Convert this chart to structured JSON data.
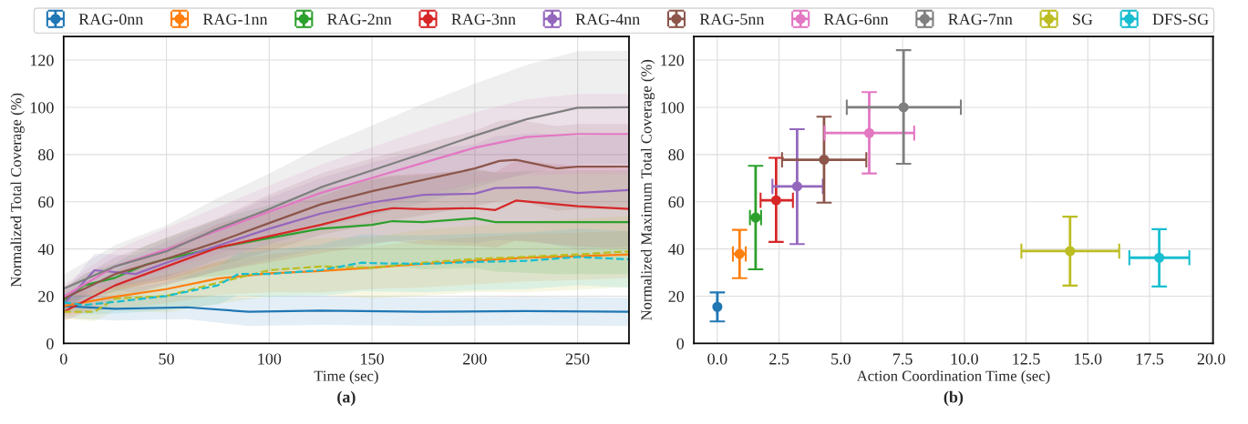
{
  "chart_data": [
    {
      "type": "line",
      "xlabel": "Time (sec)",
      "ylabel": "Normalized Total Coverage (%)",
      "annotations": [
        "(a)"
      ],
      "xlim": [
        0,
        275
      ],
      "ylim": [
        0,
        130
      ],
      "xticks": [
        0,
        50,
        100,
        150,
        200,
        250
      ],
      "yticks": [
        0,
        20,
        40,
        60,
        80,
        100,
        120
      ],
      "grid": true,
      "marker": "none",
      "series": [
        {
          "color": "#1f77b4",
          "line_style": "solid",
          "x": [
            0,
            25,
            60,
            90,
            125,
            175,
            225,
            275
          ],
          "values": [
            15.8,
            14.7,
            15.3,
            13.4,
            13.9,
            13.4,
            13.7,
            13.4
          ],
          "lower": [
            10.8,
            9.7,
            10.3,
            7.4,
            7.9,
            7.4,
            7.7,
            7.4
          ],
          "upper": [
            20.8,
            19.7,
            20.3,
            19.4,
            19.9,
            19.4,
            19.7,
            19.4
          ]
        },
        {
          "color": "#ff7f0e",
          "line_style": "solid",
          "x": [
            0,
            25,
            50,
            75,
            100,
            125,
            150,
            175,
            200,
            225,
            250,
            275
          ],
          "values": [
            15.8,
            19.8,
            23,
            27.5,
            29.7,
            30.7,
            32.1,
            33.7,
            35,
            36.3,
            36.9,
            37.7
          ],
          "lower": [
            11.8,
            14.8,
            17,
            20.5,
            21.7,
            21.7,
            23.1,
            23.7,
            25,
            26.3,
            26.9,
            27.7
          ],
          "upper": [
            19.8,
            24.8,
            29,
            34.5,
            37.7,
            39.7,
            41.1,
            43.7,
            45,
            46.3,
            46.9,
            47.7
          ]
        },
        {
          "color": "#2ca02c",
          "line_style": "solid",
          "x": [
            0,
            10,
            25,
            40,
            50,
            75,
            100,
            125,
            150,
            160,
            175,
            200,
            210,
            240,
            275
          ],
          "values": [
            18.2,
            24.6,
            27.8,
            33.4,
            35.8,
            40.6,
            44.6,
            48.6,
            50.2,
            51.8,
            51.4,
            53,
            51.4,
            51.4,
            51.4
          ],
          "lower": [
            14.2,
            19.6,
            21.8,
            25.4,
            26.8,
            28.6,
            30.6,
            31.6,
            31.2,
            32.8,
            31.4,
            32,
            30.4,
            29.4,
            29.4
          ],
          "upper": [
            22.2,
            29.6,
            33.8,
            41.4,
            44.8,
            52.6,
            58.6,
            65.6,
            69.2,
            70.8,
            71.4,
            74,
            72.4,
            73.4,
            73.4
          ]
        },
        {
          "color": "#d62728",
          "line_style": "solid",
          "x": [
            0,
            25,
            50,
            75,
            100,
            125,
            150,
            160,
            175,
            200,
            210,
            220,
            250,
            275
          ],
          "values": [
            13.4,
            24.6,
            32.6,
            40.6,
            45.4,
            50.2,
            55.8,
            57.3,
            56.9,
            57.3,
            56.5,
            60.5,
            58.1,
            57
          ],
          "lower": [
            9.4,
            18.6,
            24.6,
            30.6,
            34.4,
            38.2,
            41.8,
            43.3,
            41.9,
            41.3,
            40.5,
            43.5,
            41.1,
            40
          ],
          "upper": [
            17.4,
            30.6,
            40.6,
            50.6,
            56.4,
            62.2,
            69.8,
            71.3,
            71.9,
            73.3,
            72.5,
            77.5,
            75.1,
            74
          ]
        },
        {
          "color": "#9467bd",
          "line_style": "solid",
          "x": [
            0,
            15,
            35,
            50,
            75,
            100,
            125,
            150,
            175,
            200,
            210,
            230,
            250,
            275
          ],
          "values": [
            16.6,
            31,
            29.4,
            34.2,
            41.4,
            48.6,
            55,
            59.7,
            62.9,
            63.4,
            65.8,
            66.1,
            63.7,
            65
          ],
          "lower": [
            11.6,
            24,
            21.4,
            25.2,
            30.4,
            35.6,
            40,
            42.7,
            43.9,
            42.4,
            43.8,
            43.1,
            39.7,
            41
          ],
          "upper": [
            21.6,
            38,
            37.4,
            43.2,
            52.4,
            61.6,
            70,
            76.7,
            81.9,
            84.4,
            87.8,
            89.1,
            87.7,
            89
          ]
        },
        {
          "color": "#8c564b",
          "line_style": "solid",
          "x": [
            0,
            25,
            50,
            75,
            100,
            125,
            150,
            175,
            200,
            212,
            220,
            240,
            250,
            275
          ],
          "values": [
            19,
            29.4,
            35.8,
            43,
            51,
            58.9,
            64.5,
            69.3,
            74.1,
            77.3,
            77.8,
            74.1,
            74.9,
            74.9
          ],
          "lower": [
            14,
            22.4,
            26.8,
            33,
            39,
            45.9,
            50.5,
            54.3,
            58.1,
            60.3,
            60.8,
            56.1,
            56.9,
            56.9
          ],
          "upper": [
            24,
            36.4,
            44.8,
            53,
            63,
            71.9,
            78.5,
            84.3,
            90.1,
            94.3,
            94.8,
            92.1,
            92.9,
            92.9
          ]
        },
        {
          "color": "#e377c2",
          "line_style": "solid",
          "x": [
            0,
            25,
            50,
            75,
            100,
            125,
            150,
            175,
            200,
            225,
            250,
            275
          ],
          "values": [
            19.8,
            32.6,
            39.8,
            47.8,
            55.8,
            63.7,
            70.1,
            76.5,
            82.9,
            87.4,
            88.7,
            88.7
          ],
          "lower": [
            14.8,
            25.6,
            30.8,
            37.8,
            44.8,
            51.7,
            57.1,
            62.5,
            67.9,
            71.4,
            71.7,
            71.7
          ],
          "upper": [
            24.8,
            39.6,
            48.8,
            57.8,
            66.8,
            75.7,
            83.1,
            90.5,
            97.9,
            103.4,
            105.7,
            105.7
          ]
        },
        {
          "color": "#7f7f7f",
          "line_style": "solid",
          "x": [
            0,
            25,
            50,
            75,
            100,
            125,
            150,
            175,
            200,
            225,
            250,
            275
          ],
          "values": [
            23.2,
            32.6,
            39,
            48.6,
            56.9,
            66.1,
            73.3,
            80.5,
            88,
            94.9,
            99.8,
            100
          ],
          "lower": [
            17.2,
            23.6,
            28,
            35.6,
            41.9,
            49.1,
            54.3,
            59.5,
            66,
            71.9,
            75.8,
            76
          ],
          "upper": [
            29.2,
            41.6,
            50,
            61.6,
            71.9,
            83.1,
            92.3,
            101.5,
            110,
            117.9,
            123.8,
            124
          ]
        },
        {
          "color": "#bcbd22",
          "line_style": "dashed",
          "x": [
            0,
            15,
            25,
            50,
            75,
            100,
            125,
            150,
            175,
            200,
            225,
            250,
            275
          ],
          "values": [
            13.4,
            13.4,
            19,
            20.1,
            25.7,
            31,
            32.6,
            32.1,
            34.2,
            35.8,
            36.7,
            37.7,
            39
          ],
          "lower": [
            10.4,
            9.4,
            14,
            13.1,
            16.7,
            20,
            20.6,
            19.1,
            20.2,
            21.8,
            21.7,
            22.7,
            24
          ],
          "upper": [
            16.4,
            17.4,
            24,
            27.1,
            34.7,
            42,
            44.6,
            45.1,
            48.2,
            49.8,
            51.7,
            52.7,
            54
          ]
        },
        {
          "color": "#17becf",
          "line_style": "dashed",
          "x": [
            0,
            10,
            25,
            50,
            75,
            85,
            100,
            125,
            145,
            155,
            175,
            200,
            225,
            250,
            275
          ],
          "values": [
            17.4,
            16.3,
            17.6,
            20.1,
            24.6,
            29.4,
            29.4,
            31,
            34.2,
            33.9,
            33.7,
            34.5,
            35,
            36.6,
            35.6
          ],
          "lower": [
            14.4,
            12.3,
            12.6,
            14.1,
            16.6,
            20.4,
            19.4,
            20,
            22.2,
            21.9,
            21.7,
            22.5,
            23,
            24.6,
            23.6
          ],
          "upper": [
            20.4,
            20.3,
            22.6,
            26.1,
            32.6,
            38.4,
            39.4,
            42,
            46.2,
            45.9,
            45.7,
            46.5,
            47,
            48.6,
            47.6
          ]
        }
      ]
    },
    {
      "type": "scatter",
      "xlabel": "Action Coordination Time (sec)",
      "ylabel": "Normalized Maximum Total Coverage (%)",
      "annotations": [
        "(b)"
      ],
      "xlim": [
        -0.95,
        20.07
      ],
      "ylim": [
        0,
        130
      ],
      "xticks": [
        {
          "value": 0,
          "label": "0.0"
        },
        2.5,
        {
          "value": 5,
          "label": "5.0"
        },
        7.5,
        {
          "value": 10,
          "label": "10.0"
        },
        12.5,
        {
          "value": 15,
          "label": "15.0"
        },
        17.5,
        {
          "value": 20,
          "label": "20.0"
        }
      ],
      "yticks": [
        0,
        20,
        40,
        60,
        80,
        100,
        120
      ],
      "grid": true,
      "marker": "circle",
      "legend": "top",
      "series": [
        {
          "name": "RAG-0nn",
          "color": "#1f77b4",
          "x": [
            0
          ],
          "values": [
            15.5
          ],
          "errors": [
            [
              9.3,
              21.6
            ]
          ],
          "xerrors": [
            null
          ]
        },
        {
          "name": "RAG-1nn",
          "color": "#ff7f0e",
          "x": [
            0.9
          ],
          "values": [
            37.9
          ],
          "errors": [
            [
              27.6,
              48.1
            ]
          ],
          "xerrors": [
            [
              0.63,
              1.15
            ]
          ]
        },
        {
          "name": "RAG-2nn",
          "color": "#2ca02c",
          "x": [
            1.55
          ],
          "values": [
            53.3
          ],
          "errors": [
            [
              31.4,
              75.2
            ]
          ],
          "xerrors": [
            [
              1.32,
              1.77
            ]
          ]
        },
        {
          "name": "RAG-3nn",
          "color": "#d62728",
          "x": [
            2.38
          ],
          "values": [
            60.6
          ],
          "errors": [
            [
              43,
              78.6
            ]
          ],
          "xerrors": [
            [
              1.75,
              3.06
            ]
          ]
        },
        {
          "name": "RAG-4nn",
          "color": "#9467bd",
          "x": [
            3.23
          ],
          "values": [
            66.5
          ],
          "errors": [
            [
              42.1,
              90.7
            ]
          ],
          "xerrors": [
            [
              2.23,
              4.27
            ]
          ]
        },
        {
          "name": "RAG-5nn",
          "color": "#8c564b",
          "x": [
            4.32
          ],
          "values": [
            77.8
          ],
          "errors": [
            [
              59.6,
              96
            ]
          ],
          "xerrors": [
            [
              2.62,
              6.03
            ]
          ]
        },
        {
          "name": "RAG-6nn",
          "color": "#e377c2",
          "x": [
            6.15
          ],
          "values": [
            89.1
          ],
          "errors": [
            [
              72,
              106.4
            ]
          ],
          "xerrors": [
            [
              4.34,
              7.97
            ]
          ]
        },
        {
          "name": "RAG-7nn",
          "color": "#7f7f7f",
          "x": [
            7.54
          ],
          "values": [
            100
          ],
          "errors": [
            [
              76.1,
              124.2
            ]
          ],
          "xerrors": [
            [
              5.24,
              9.86
            ]
          ]
        },
        {
          "name": "SG",
          "color": "#bcbd22",
          "x": [
            14.28
          ],
          "values": [
            39.1
          ],
          "errors": [
            [
              24.5,
              53.7
            ]
          ],
          "xerrors": [
            [
              12.31,
              16.27
            ]
          ]
        },
        {
          "name": "DFS-SG",
          "color": "#17becf",
          "x": [
            17.89
          ],
          "values": [
            36.3
          ],
          "errors": [
            [
              24.1,
              48.4
            ]
          ],
          "xerrors": [
            [
              16.68,
              19.11
            ]
          ]
        }
      ]
    }
  ]
}
